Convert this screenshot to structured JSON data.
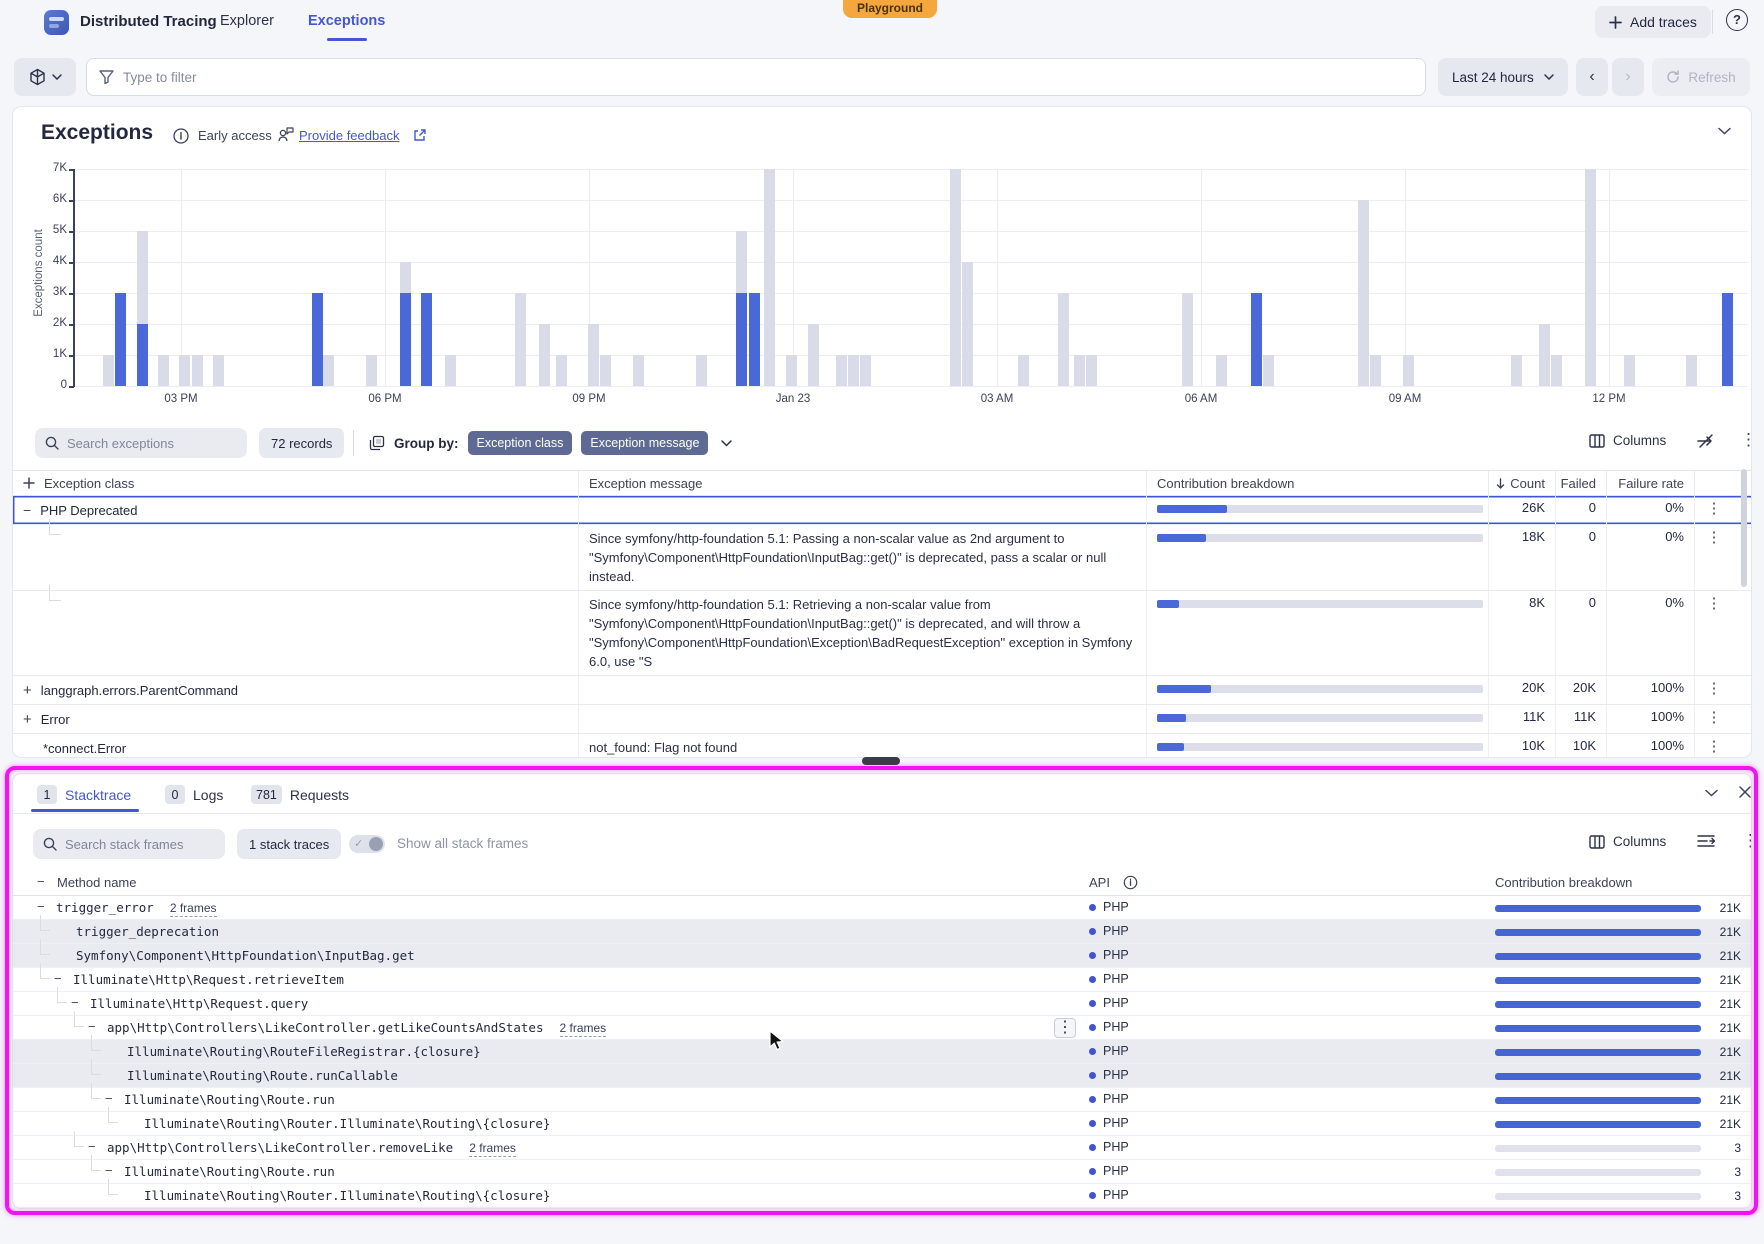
{
  "colors": {
    "accent": "#4457d2",
    "bar_blue": "#4a68d8",
    "bar_gray": "#d9dce8",
    "chip": "#5e6a93",
    "highlight": "#f014f0",
    "playground": "#f4a73c"
  },
  "nav": {
    "app_title": "Distributed Tracing",
    "tabs": [
      {
        "label": "Explorer",
        "active": false
      },
      {
        "label": "Exceptions",
        "active": true
      }
    ],
    "playground_badge": "Playground",
    "add_traces_label": "Add traces"
  },
  "filter_bar": {
    "filter_placeholder": "Type to filter",
    "time_range": "Last 24 hours",
    "refresh_label": "Refresh"
  },
  "header": {
    "title": "Exceptions",
    "early_access": "Early access",
    "feedback_link": "Provide feedback"
  },
  "chart_data": {
    "type": "bar",
    "ylabel": "Exceptions count",
    "yticks": [
      "0",
      "1K",
      "2K",
      "3K",
      "4K",
      "5K",
      "6K",
      "7K"
    ],
    "ylim": [
      0,
      7000
    ],
    "grid": true,
    "xticks": [
      [
        "03 PM",
        180
      ],
      [
        "06 PM",
        384
      ],
      [
        "09 PM",
        588
      ],
      [
        "Jan 23",
        792
      ],
      [
        "03 AM",
        996
      ],
      [
        "06 AM",
        1200
      ],
      [
        "09 AM",
        1404
      ],
      [
        "12 PM",
        1608
      ]
    ],
    "bars_format": "[x_px, total_thousands, selected_thousands]",
    "bars": [
      [
        107,
        1,
        0
      ],
      [
        119,
        3,
        3
      ],
      [
        141,
        5,
        2
      ],
      [
        162,
        1,
        0
      ],
      [
        183,
        1,
        0
      ],
      [
        196,
        1,
        0
      ],
      [
        217,
        1,
        0
      ],
      [
        316,
        3,
        3
      ],
      [
        327,
        1,
        0
      ],
      [
        370,
        1,
        0
      ],
      [
        404,
        4,
        3
      ],
      [
        425,
        3,
        3
      ],
      [
        449,
        1,
        0
      ],
      [
        519,
        3,
        0
      ],
      [
        543,
        2,
        0
      ],
      [
        560,
        1,
        0
      ],
      [
        592,
        2,
        0
      ],
      [
        604,
        1,
        0
      ],
      [
        637,
        1,
        0
      ],
      [
        700,
        1,
        0
      ],
      [
        740,
        5,
        3
      ],
      [
        753,
        3,
        3
      ],
      [
        768,
        7.2,
        0
      ],
      [
        790,
        1,
        0
      ],
      [
        812,
        2,
        0
      ],
      [
        840,
        1,
        0
      ],
      [
        852,
        1,
        0
      ],
      [
        864,
        1,
        0
      ],
      [
        954,
        7.2,
        0
      ],
      [
        966,
        4,
        0
      ],
      [
        1022,
        1,
        0
      ],
      [
        1062,
        3,
        0
      ],
      [
        1078,
        1,
        0
      ],
      [
        1090,
        1,
        0
      ],
      [
        1186,
        3,
        0
      ],
      [
        1220,
        1,
        0
      ],
      [
        1255,
        3,
        3
      ],
      [
        1267,
        1,
        0
      ],
      [
        1362,
        6,
        0
      ],
      [
        1374,
        1,
        0
      ],
      [
        1407,
        1,
        0
      ],
      [
        1515,
        1,
        0
      ],
      [
        1543,
        2,
        0
      ],
      [
        1555,
        1,
        0
      ],
      [
        1589,
        7.2,
        0
      ],
      [
        1628,
        1,
        0
      ],
      [
        1690,
        1,
        0
      ],
      [
        1726,
        3,
        3
      ]
    ]
  },
  "exceptions_table": {
    "search_placeholder": "Search exceptions",
    "records_badge": "72 records",
    "group_by_label": "Group by:",
    "group_chips": [
      "Exception class",
      "Exception message"
    ],
    "columns_label": "Columns",
    "headers": {
      "class": "Exception class",
      "message": "Exception message",
      "breakdown": "Contribution breakdown",
      "count": "Count",
      "failed": "Failed",
      "rate": "Failure rate"
    },
    "rows": [
      {
        "toggle": "minus",
        "class_name": "PHP Deprecated",
        "message": "",
        "fill": 0.215,
        "count": "26K",
        "failed": "0",
        "rate": "0%",
        "selected": true
      },
      {
        "toggle": "",
        "class_name": "",
        "message": "Since symfony/http-foundation 5.1: Passing a non-scalar value as 2nd argument to \"Symfony\\Component\\HttpFoundation\\InputBag::get()\" is deprecated, pass a scalar or null instead.",
        "fill": 0.15,
        "count": "18K",
        "failed": "0",
        "rate": "0%",
        "connector": true
      },
      {
        "toggle": "",
        "class_name": "",
        "message": "Since symfony/http-foundation 5.1: Retrieving a non-scalar value from \"Symfony\\Component\\HttpFoundation\\InputBag::get()\" is deprecated, and will throw a \"Symfony\\Component\\HttpFoundation\\Exception\\BadRequestException\" exception in Symfony 6.0, use \"S",
        "fill": 0.066,
        "count": "8K",
        "failed": "0",
        "rate": "0%",
        "connector": true
      },
      {
        "toggle": "plus",
        "class_name": "langgraph.errors.ParentCommand",
        "message": "",
        "fill": 0.165,
        "count": "20K",
        "failed": "20K",
        "rate": "100%"
      },
      {
        "toggle": "plus",
        "class_name": "Error",
        "message": "",
        "fill": 0.09,
        "count": "11K",
        "failed": "11K",
        "rate": "100%"
      },
      {
        "toggle": "indent",
        "class_name": "*connect.Error",
        "message": "not_found: Flag not found",
        "fill": 0.083,
        "count": "10K",
        "failed": "10K",
        "rate": "100%"
      }
    ]
  },
  "bottom_panel": {
    "tabs": [
      {
        "count": "1",
        "label": "Stacktrace",
        "active": true
      },
      {
        "count": "0",
        "label": "Logs",
        "active": false
      },
      {
        "count": "781",
        "label": "Requests",
        "active": false
      }
    ],
    "search_placeholder": "Search stack frames",
    "traces_badge": "1 stack traces",
    "toggle_label": "Show all stack frames",
    "columns_label": "Columns",
    "headers": {
      "method": "Method name",
      "api": "API",
      "breakdown": "Contribution breakdown"
    },
    "rows": [
      {
        "depth": 0,
        "branch": true,
        "name": "trigger_error",
        "frames_link": "2 frames",
        "api": "PHP",
        "value": "21K",
        "fill": 1,
        "striped": false
      },
      {
        "depth": 1,
        "branch": false,
        "name": "trigger_deprecation",
        "api": "PHP",
        "value": "21K",
        "fill": 1,
        "striped": true
      },
      {
        "depth": 1,
        "branch": false,
        "name": "Symfony\\Component\\HttpFoundation\\InputBag.get",
        "api": "PHP",
        "value": "21K",
        "fill": 1,
        "striped": true
      },
      {
        "depth": 1,
        "branch": true,
        "name": "Illuminate\\Http\\Request.retrieveItem",
        "api": "PHP",
        "value": "21K",
        "fill": 1,
        "striped": false
      },
      {
        "depth": 2,
        "branch": true,
        "name": "Illuminate\\Http\\Request.query",
        "api": "PHP",
        "value": "21K",
        "fill": 1,
        "striped": false
      },
      {
        "depth": 3,
        "branch": true,
        "name": "app\\Http\\Controllers\\LikeController.getLikeCountsAndStates",
        "frames_link": "2 frames",
        "api": "PHP",
        "value": "21K",
        "fill": 1,
        "striped": false,
        "kebab": true
      },
      {
        "depth": 4,
        "branch": false,
        "name": "Illuminate\\Routing\\RouteFileRegistrar.{closure}",
        "api": "PHP",
        "value": "21K",
        "fill": 1,
        "striped": true
      },
      {
        "depth": 4,
        "branch": false,
        "name": "Illuminate\\Routing\\Route.runCallable",
        "api": "PHP",
        "value": "21K",
        "fill": 1,
        "striped": true
      },
      {
        "depth": 4,
        "branch": true,
        "name": "Illuminate\\Routing\\Route.run",
        "api": "PHP",
        "value": "21K",
        "fill": 1,
        "striped": false
      },
      {
        "depth": 5,
        "branch": false,
        "name": "Illuminate\\Routing\\Router.Illuminate\\Routing\\{closure}",
        "api": "PHP",
        "value": "21K",
        "fill": 1,
        "striped": false
      },
      {
        "depth": 3,
        "branch": true,
        "name": "app\\Http\\Controllers\\LikeController.removeLike",
        "frames_link": "2 frames",
        "api": "PHP",
        "value": "3",
        "fill": 0,
        "striped": false
      },
      {
        "depth": 4,
        "branch": true,
        "name": "Illuminate\\Routing\\Route.run",
        "api": "PHP",
        "value": "3",
        "fill": 0,
        "striped": false
      },
      {
        "depth": 5,
        "branch": false,
        "name": "Illuminate\\Routing\\Router.Illuminate\\Routing\\{closure}",
        "api": "PHP",
        "value": "3",
        "fill": 0,
        "striped": false
      }
    ]
  }
}
